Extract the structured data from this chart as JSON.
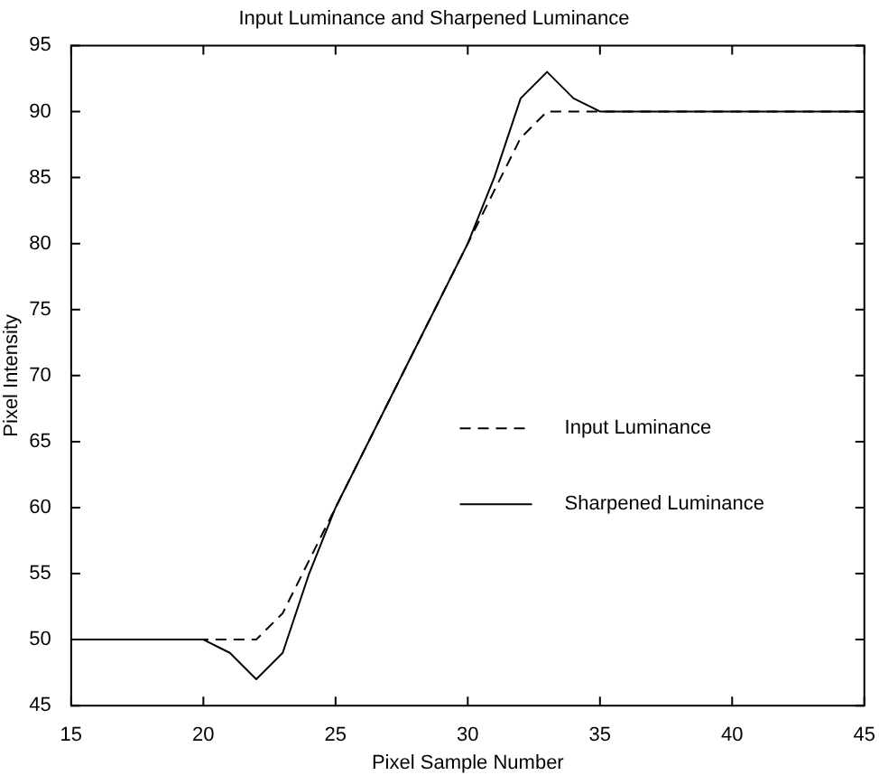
{
  "chart_data": {
    "type": "line",
    "title": "Input Luminance and Sharpened Luminance",
    "xlabel": "Pixel Sample Number",
    "ylabel": "Pixel Intensity",
    "x": [
      15,
      16,
      17,
      18,
      19,
      20,
      21,
      22,
      23,
      24,
      25,
      26,
      27,
      28,
      29,
      30,
      31,
      32,
      33,
      34,
      35,
      36,
      37,
      38,
      39,
      40,
      41,
      42,
      43,
      44,
      45
    ],
    "series": [
      {
        "name": "Input Luminance",
        "color": "#000000",
        "line_style": "dashed",
        "values": [
          50,
          50,
          50,
          50,
          50,
          50,
          50,
          50,
          52,
          56,
          60,
          64,
          68,
          72,
          76,
          80,
          84,
          88,
          90,
          90,
          90,
          90,
          90,
          90,
          90,
          90,
          90,
          90,
          90,
          90,
          90
        ]
      },
      {
        "name": "Sharpened Luminance",
        "color": "#000000",
        "line_style": "solid",
        "values": [
          50,
          50,
          50,
          50,
          50,
          50,
          49,
          47,
          49,
          55,
          60,
          64,
          68,
          72,
          76,
          80,
          85,
          91,
          93,
          91,
          90,
          90,
          90,
          90,
          90,
          90,
          90,
          90,
          90,
          90,
          90
        ]
      }
    ],
    "xlim": [
      15,
      45
    ],
    "xticks": [
      15,
      20,
      25,
      30,
      35,
      40,
      45
    ],
    "ylim": [
      45,
      95
    ],
    "yticks": [
      45,
      50,
      55,
      60,
      65,
      70,
      75,
      80,
      85,
      90,
      95
    ],
    "grid": false,
    "legend": "right",
    "marker": "none"
  }
}
